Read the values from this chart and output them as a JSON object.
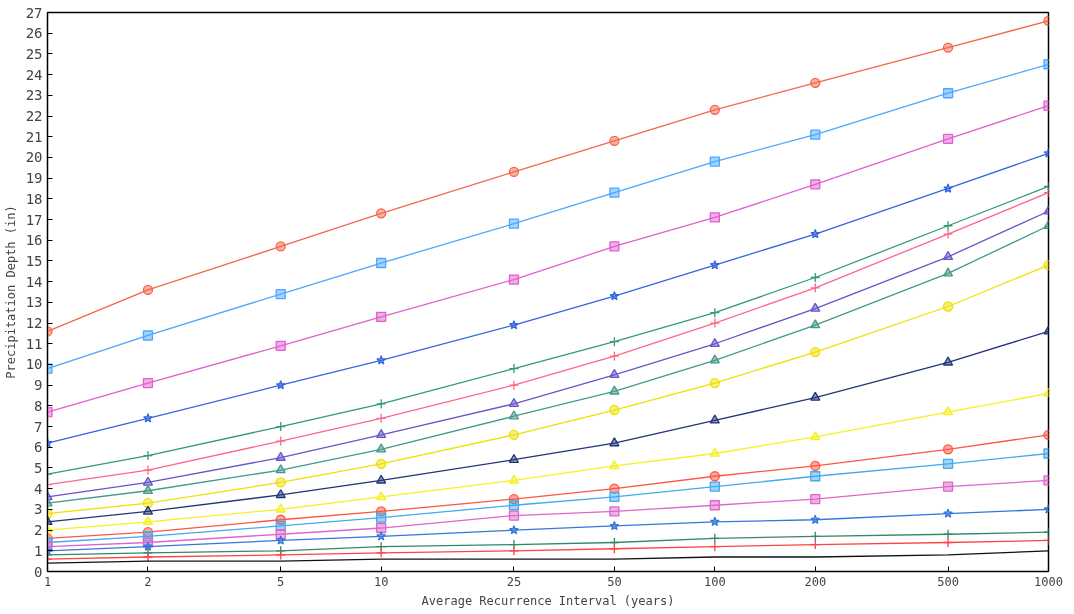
{
  "chart_data": {
    "type": "line",
    "xlabel": "Average Recurrence Interval (years)",
    "ylabel": "Precipitation Depth (in)",
    "x": [
      1,
      2,
      5,
      10,
      25,
      50,
      100,
      200,
      500,
      1000
    ],
    "log": "x",
    "xlim": [
      1,
      1000
    ],
    "xticks": [
      1,
      2,
      5,
      10,
      25,
      50,
      100,
      200,
      500,
      1000
    ],
    "ylim": [
      0,
      27
    ],
    "yticks": [
      0,
      1,
      2,
      3,
      4,
      5,
      6,
      7,
      8,
      9,
      10,
      11,
      12,
      13,
      14,
      15,
      16,
      17,
      18,
      19,
      20,
      21,
      22,
      23,
      24,
      25,
      26,
      27
    ],
    "grid": false,
    "series": [
      {
        "color": "#f4664a",
        "marker": "circle",
        "values": [
          11.6,
          13.6,
          15.7,
          17.3,
          19.3,
          20.8,
          22.3,
          23.6,
          25.3,
          26.6
        ]
      },
      {
        "color": "#4da6ff",
        "marker": "square",
        "values": [
          9.8,
          11.4,
          13.4,
          14.9,
          16.8,
          18.3,
          19.8,
          21.1,
          23.1,
          24.5
        ]
      },
      {
        "color": "#e060d0",
        "marker": "square",
        "values": [
          7.7,
          9.1,
          10.9,
          12.3,
          14.1,
          15.7,
          17.1,
          18.7,
          20.9,
          22.5
        ]
      },
      {
        "color": "#3366dd",
        "marker": "star",
        "values": [
          6.2,
          7.4,
          9.0,
          10.2,
          11.9,
          13.3,
          14.8,
          16.3,
          18.5,
          20.2
        ]
      },
      {
        "color": "#339977",
        "marker": "cross",
        "values": [
          4.7,
          5.6,
          7.0,
          8.1,
          9.8,
          11.1,
          12.5,
          14.2,
          16.7,
          18.6
        ]
      },
      {
        "color": "#ff6688",
        "marker": "cross",
        "values": [
          4.2,
          4.9,
          6.3,
          7.4,
          9.0,
          10.4,
          12.0,
          13.7,
          16.3,
          18.3
        ]
      },
      {
        "color": "#6655cc",
        "marker": "triangle",
        "values": [
          3.6,
          4.3,
          5.5,
          6.6,
          8.1,
          9.5,
          11.0,
          12.7,
          15.2,
          17.4
        ]
      },
      {
        "color": "#44998a",
        "marker": "triangle",
        "values": [
          3.3,
          3.9,
          4.9,
          5.9,
          7.5,
          8.7,
          10.2,
          11.9,
          14.4,
          16.7
        ]
      },
      {
        "color": "#f0e000",
        "marker": "circle",
        "values": [
          2.8,
          3.3,
          4.3,
          5.2,
          6.6,
          7.8,
          9.1,
          10.6,
          12.8,
          14.8
        ]
      },
      {
        "color": "#223377",
        "marker": "triangle",
        "values": [
          2.4,
          2.9,
          3.7,
          4.4,
          5.4,
          6.2,
          7.3,
          8.4,
          10.1,
          11.6
        ]
      },
      {
        "color": "#f5f020",
        "marker": "triangle",
        "values": [
          2.0,
          2.4,
          3.0,
          3.6,
          4.4,
          5.1,
          5.7,
          6.5,
          7.7,
          8.6
        ]
      },
      {
        "color": "#ff5544",
        "marker": "circle",
        "values": [
          1.6,
          1.9,
          2.5,
          2.9,
          3.5,
          4.0,
          4.6,
          5.1,
          5.9,
          6.6
        ]
      },
      {
        "color": "#44aaee",
        "marker": "square",
        "values": [
          1.4,
          1.7,
          2.2,
          2.6,
          3.2,
          3.6,
          4.1,
          4.6,
          5.2,
          5.7
        ]
      },
      {
        "color": "#dd66cc",
        "marker": "square",
        "values": [
          1.2,
          1.4,
          1.8,
          2.1,
          2.7,
          2.9,
          3.2,
          3.5,
          4.1,
          4.4
        ]
      },
      {
        "color": "#3377dd",
        "marker": "star",
        "values": [
          1.0,
          1.2,
          1.5,
          1.7,
          2.0,
          2.2,
          2.4,
          2.5,
          2.8,
          3.0
        ]
      },
      {
        "color": "#338866",
        "marker": "cross",
        "values": [
          0.8,
          0.9,
          1.0,
          1.2,
          1.3,
          1.4,
          1.6,
          1.7,
          1.8,
          1.9
        ]
      },
      {
        "color": "#ff4444",
        "marker": "cross",
        "values": [
          0.6,
          0.7,
          0.8,
          0.9,
          1.0,
          1.1,
          1.2,
          1.3,
          1.4,
          1.5
        ]
      },
      {
        "color": "#111111",
        "marker": "none",
        "values": [
          0.4,
          0.5,
          0.5,
          0.6,
          0.6,
          0.6,
          0.7,
          0.7,
          0.8,
          1.0
        ]
      }
    ]
  }
}
